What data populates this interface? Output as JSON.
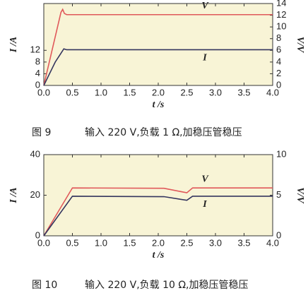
{
  "chart_data": [
    {
      "type": "line",
      "ylabel": "I /A",
      "y2label": "V/V",
      "xlabel": "t /s",
      "figure_label": "图 9",
      "caption": "输入 220 V,负载 1 Ω,加稳压管稳压",
      "xlim": [
        0,
        4
      ],
      "xticks": [
        {
          "value": 0,
          "label": "0.0"
        },
        0.5,
        {
          "value": 1,
          "label": "1.0"
        },
        1.5,
        {
          "value": 2,
          "label": "2.0"
        },
        2.5,
        {
          "value": 3,
          "label": "3.0"
        },
        3.5,
        {
          "value": 4,
          "label": "4.0"
        }
      ],
      "ylim": [
        0,
        28
      ],
      "yticks": [
        0,
        4,
        8,
        12
      ],
      "y2lim": [
        0,
        14
      ],
      "y2ticks": [
        0,
        2,
        4,
        6,
        8,
        10,
        12,
        14
      ],
      "series": [
        {
          "name": "V",
          "color": "#e0585a",
          "axis": "y2",
          "x": [
            0,
            0.3,
            0.33,
            0.36,
            0.4,
            4.0
          ],
          "values": [
            0,
            12.5,
            13,
            12.3,
            12.1,
            12.1
          ]
        },
        {
          "name": "I",
          "color": "#34355e",
          "x": [
            0,
            0.1,
            0.2,
            0.3,
            0.35,
            0.4,
            4.0
          ],
          "values": [
            0,
            4,
            8,
            11,
            12.5,
            12.2,
            12.2
          ]
        }
      ]
    },
    {
      "type": "line",
      "ylabel": "I /A",
      "y2label": "V/V",
      "xlabel": "t /s",
      "figure_label": "图 10",
      "caption": "输入 220 V,负载 10 Ω,加稳压管稳压",
      "xlim": [
        0,
        4
      ],
      "xticks": [
        {
          "value": 0,
          "label": "0.0"
        },
        0.5,
        {
          "value": 1,
          "label": "1.0"
        },
        1.5,
        {
          "value": 2,
          "label": "2.0"
        },
        2.5,
        {
          "value": 3,
          "label": "3.0"
        },
        3.5,
        {
          "value": 4,
          "label": "4.0"
        }
      ],
      "ylim": [
        0,
        40
      ],
      "yticks": [
        0,
        20,
        40
      ],
      "y2lim": [
        0,
        10
      ],
      "y2ticks": [
        0,
        5,
        10
      ],
      "series": [
        {
          "name": "V",
          "color": "#e0585a",
          "axis": "y2",
          "x": [
            0,
            0.5,
            2.1,
            2.5,
            2.6,
            4.0
          ],
          "values": [
            0,
            5.9,
            5.85,
            5.3,
            5.9,
            5.9
          ]
        },
        {
          "name": "I",
          "color": "#34355e",
          "x": [
            0,
            0.5,
            2.1,
            2.5,
            2.6,
            4.0
          ],
          "values": [
            0,
            19.5,
            19.3,
            17.5,
            19.5,
            19.5
          ]
        }
      ]
    }
  ]
}
